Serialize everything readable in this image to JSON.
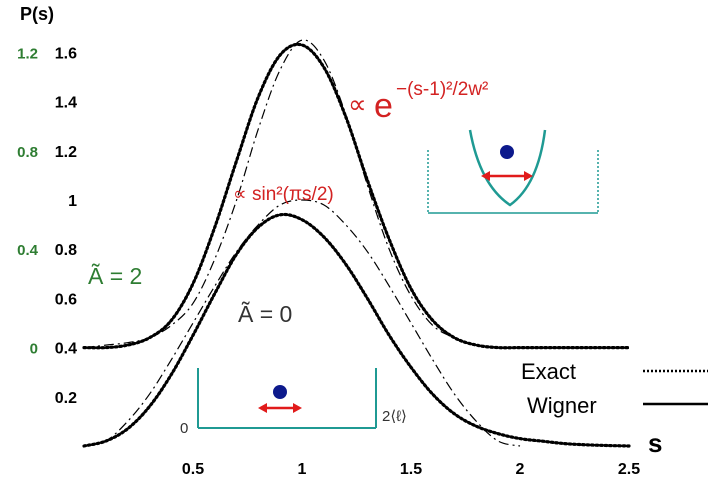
{
  "chart_data": {
    "type": "line",
    "ylabel": "P(s)",
    "xlabel": "s",
    "xlim": [
      0,
      2.5
    ],
    "ylim": [
      0,
      1.7
    ],
    "x_ticks": [
      "0.5",
      "1",
      "1.5",
      "2",
      "2.5"
    ],
    "y_ticks": [
      "0.2",
      "0.4",
      "0.6",
      "0.8",
      "1",
      "1.2",
      "1.4",
      "1.6"
    ],
    "y_ticks_secondary": [
      "0",
      "0.4",
      "0.8",
      "1.2"
    ],
    "secondary_offset": 0.4,
    "series": [
      {
        "name": "Exact",
        "group": "lower",
        "style": "dotted",
        "x": [
          0,
          0.1,
          0.2,
          0.3,
          0.4,
          0.5,
          0.6,
          0.7,
          0.8,
          0.9,
          1.0,
          1.1,
          1.2,
          1.3,
          1.4,
          1.5,
          1.6,
          1.7,
          1.8,
          1.9,
          2.0,
          2.1,
          2.2,
          2.3,
          2.4,
          2.5
        ],
        "y": [
          0,
          0.02,
          0.07,
          0.16,
          0.29,
          0.45,
          0.62,
          0.78,
          0.89,
          0.94,
          0.92,
          0.85,
          0.74,
          0.6,
          0.45,
          0.32,
          0.21,
          0.13,
          0.08,
          0.05,
          0.03,
          0.02,
          0.01,
          0.005,
          0.002,
          0
        ]
      },
      {
        "name": "Wigner",
        "group": "lower",
        "style": "solid",
        "x": [
          0,
          0.1,
          0.2,
          0.3,
          0.4,
          0.5,
          0.6,
          0.7,
          0.8,
          0.9,
          1.0,
          1.1,
          1.2,
          1.3,
          1.4,
          1.5,
          1.6,
          1.7,
          1.8,
          1.9,
          2.0,
          2.1,
          2.2,
          2.3,
          2.4,
          2.5
        ],
        "y": [
          0,
          0.02,
          0.07,
          0.16,
          0.29,
          0.45,
          0.62,
          0.78,
          0.89,
          0.94,
          0.92,
          0.85,
          0.74,
          0.6,
          0.45,
          0.32,
          0.21,
          0.13,
          0.08,
          0.05,
          0.03,
          0.02,
          0.01,
          0.005,
          0.002,
          0
        ]
      },
      {
        "name": "∝ sin²(πs/2)",
        "group": "lower",
        "style": "dashdot",
        "x": [
          0,
          0.1,
          0.2,
          0.3,
          0.4,
          0.5,
          0.6,
          0.7,
          0.8,
          0.9,
          1.0,
          1.1,
          1.2,
          1.3,
          1.4,
          1.5,
          1.6,
          1.7,
          1.8,
          1.9,
          2.0
        ],
        "y": [
          0,
          0.02,
          0.1,
          0.21,
          0.35,
          0.5,
          0.65,
          0.79,
          0.9,
          0.98,
          1.0,
          0.98,
          0.9,
          0.79,
          0.65,
          0.5,
          0.35,
          0.21,
          0.1,
          0.02,
          0
        ]
      },
      {
        "name": "Exact",
        "group": "upper",
        "style": "dotted",
        "x": [
          0,
          0.1,
          0.2,
          0.3,
          0.4,
          0.5,
          0.6,
          0.7,
          0.8,
          0.9,
          1.0,
          1.1,
          1.2,
          1.3,
          1.4,
          1.5,
          1.6,
          1.7,
          1.8,
          1.9,
          2.0,
          2.1,
          2.2,
          2.3,
          2.4,
          2.5
        ],
        "y": [
          0.4,
          0.4,
          0.41,
          0.44,
          0.51,
          0.66,
          0.89,
          1.16,
          1.42,
          1.59,
          1.63,
          1.54,
          1.34,
          1.08,
          0.84,
          0.64,
          0.51,
          0.44,
          0.41,
          0.4,
          0.4,
          0.4,
          0.4,
          0.4,
          0.4,
          0.4
        ]
      },
      {
        "name": "Wigner",
        "group": "upper",
        "style": "solid",
        "x": [
          0,
          0.1,
          0.2,
          0.3,
          0.4,
          0.5,
          0.6,
          0.7,
          0.8,
          0.9,
          1.0,
          1.1,
          1.2,
          1.3,
          1.4,
          1.5,
          1.6,
          1.7,
          1.8,
          1.9,
          2.0,
          2.1,
          2.2,
          2.3,
          2.4,
          2.5
        ],
        "y": [
          0.4,
          0.4,
          0.41,
          0.44,
          0.51,
          0.66,
          0.89,
          1.16,
          1.42,
          1.59,
          1.63,
          1.54,
          1.34,
          1.08,
          0.84,
          0.64,
          0.51,
          0.44,
          0.41,
          0.4,
          0.4,
          0.4,
          0.4,
          0.4,
          0.4,
          0.4
        ]
      },
      {
        "name": "∝ e^−(s−1)²/2w²",
        "group": "upper",
        "style": "dashdot",
        "x": [
          0,
          0.1,
          0.2,
          0.3,
          0.4,
          0.5,
          0.6,
          0.7,
          0.8,
          0.9,
          1.0,
          1.1,
          1.2,
          1.3,
          1.4,
          1.5,
          1.6,
          1.7,
          1.8,
          1.9,
          2.0,
          2.1,
          2.2,
          2.3,
          2.4,
          2.5
        ],
        "y": [
          0.4,
          0.41,
          0.42,
          0.44,
          0.49,
          0.58,
          0.76,
          1.0,
          1.29,
          1.53,
          1.65,
          1.57,
          1.35,
          1.06,
          0.8,
          0.61,
          0.49,
          0.44,
          0.41,
          0.4,
          0.4,
          0.4,
          0.4,
          0.4,
          0.4,
          0.4
        ]
      }
    ],
    "annotations": {
      "gauss_prop": "∝",
      "gauss_e": "e",
      "gauss_exp": "−(s-1)²/2w²",
      "sin_prop": "∝",
      "sin_text": "sin²(πs/2)",
      "a_upper": "Ã = 2",
      "a_lower": "Ã = 0",
      "box_zero": "0",
      "box_two_l": "2⟨ℓ⟩"
    },
    "legend": {
      "placement": "bottom-right",
      "entries": [
        {
          "label": "Exact",
          "style": "dotted"
        },
        {
          "label": "Wigner",
          "style": "solid"
        }
      ]
    },
    "colors": {
      "curve": "#000000",
      "annotation": "#d32222",
      "secondary_axis": "#2e7d32",
      "well": "#1f9a93",
      "particle": "#0d1a8c",
      "arrow": "#e11b1b"
    }
  }
}
